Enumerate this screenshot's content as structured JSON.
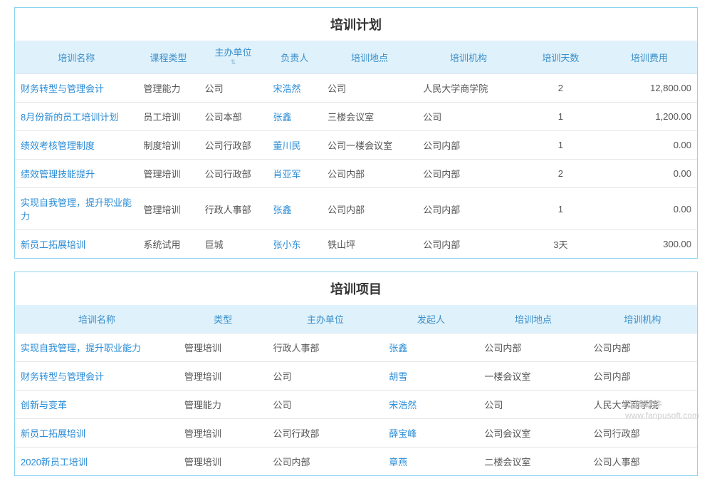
{
  "colors": {
    "border": "#8bd4f0",
    "header_bg": "#dff1fb",
    "header_text": "#3a8fca",
    "link": "#2a8cd6",
    "row_border": "#e6e6e6",
    "body_text": "#555555"
  },
  "table1": {
    "title": "培训计划",
    "columns": [
      "培训名称",
      "课程类型",
      "主办单位",
      "负责人",
      "培训地点",
      "培训机构",
      "培训天数",
      "培训费用"
    ],
    "sort_col_index": 2,
    "col_widths_pct": [
      18,
      9,
      10,
      8,
      14,
      15,
      12,
      14
    ],
    "rows": [
      {
        "name": "财务转型与管理会计",
        "type": "管理能力",
        "host": "公司",
        "owner": "宋浩然",
        "place": "公司",
        "org": "人民大学商学院",
        "days": "2",
        "cost": "12,800.00"
      },
      {
        "name": "8月份新的员工培训计划",
        "type": "员工培训",
        "host": "公司本部",
        "owner": "张鑫",
        "place": "三楼会议室",
        "org": "公司",
        "days": "1",
        "cost": "1,200.00"
      },
      {
        "name": "绩效考核管理制度",
        "type": "制度培训",
        "host": "公司行政部",
        "owner": "董川民",
        "place": "公司一楼会议室",
        "org": "公司内部",
        "days": "1",
        "cost": "0.00"
      },
      {
        "name": "绩效管理技能提升",
        "type": "管理培训",
        "host": "公司行政部",
        "owner": "肖亚军",
        "place": "公司内部",
        "org": "公司内部",
        "days": "2",
        "cost": "0.00"
      },
      {
        "name": "实现自我管理，提升职业能力",
        "type": "管理培训",
        "host": "行政人事部",
        "owner": "张鑫",
        "place": "公司内部",
        "org": "公司内部",
        "days": "1",
        "cost": "0.00"
      },
      {
        "name": "新员工拓展培训",
        "type": "系统试用",
        "host": "巨城",
        "owner": "张小东",
        "place": "铁山坪",
        "org": "公司内部",
        "days": "3天",
        "cost": "300.00"
      }
    ]
  },
  "table2": {
    "title": "培训项目",
    "columns": [
      "培训名称",
      "类型",
      "主办单位",
      "发起人",
      "培训地点",
      "培训机构"
    ],
    "col_widths_pct": [
      24,
      13,
      17,
      14,
      16,
      16
    ],
    "rows": [
      {
        "name": "实现自我管理，提升职业能力",
        "type": "管理培训",
        "host": "行政人事部",
        "owner": "张鑫",
        "place": "公司内部",
        "org": "公司内部"
      },
      {
        "name": "财务转型与管理会计",
        "type": "管理培训",
        "host": "公司",
        "owner": "胡雪",
        "place": "一楼会议室",
        "org": "公司内部"
      },
      {
        "name": "创新与变革",
        "type": "管理能力",
        "host": "公司",
        "owner": "宋浩然",
        "place": "公司",
        "org": "人民大学商学院"
      },
      {
        "name": "新员工拓展培训",
        "type": "管理培训",
        "host": "公司行政部",
        "owner": "薛宝峰",
        "place": "公司会议室",
        "org": "公司行政部"
      },
      {
        "name": "2020新员工培训",
        "type": "管理培训",
        "host": "公司内部",
        "owner": "章燕",
        "place": "二楼会议室",
        "org": "公司人事部"
      }
    ]
  },
  "watermark": "www.fanpusoft.com",
  "watermark_brand": "泛普软件"
}
